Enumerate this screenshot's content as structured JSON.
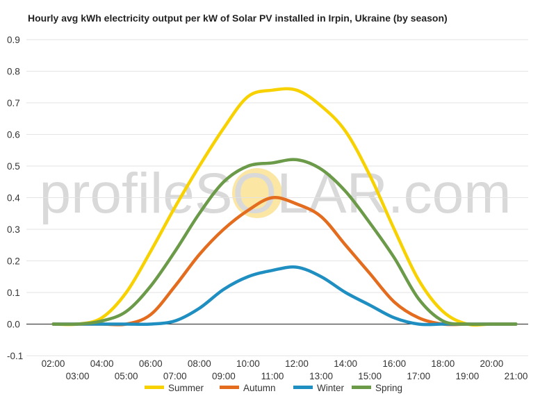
{
  "watermark": {
    "text": "profileSOLAR.com",
    "color": "#d9d9d9",
    "sun_color": "#fbe7a3"
  },
  "chart_data": {
    "type": "line",
    "title": "Hourly avg kWh electricity output per kW of Solar PV installed in Irpin, Ukraine (by season)",
    "xlabel": "",
    "ylabel": "",
    "x": [
      "02:00",
      "03:00",
      "04:00",
      "05:00",
      "06:00",
      "07:00",
      "08:00",
      "09:00",
      "10:00",
      "11:00",
      "12:00",
      "13:00",
      "14:00",
      "15:00",
      "16:00",
      "17:00",
      "18:00",
      "19:00",
      "20:00",
      "21:00"
    ],
    "ylim": [
      -0.1,
      0.9
    ],
    "yticks": [
      -0.1,
      0.0,
      0.1,
      0.2,
      0.3,
      0.4,
      0.5,
      0.6,
      0.7,
      0.8,
      0.9
    ],
    "grid": true,
    "legend_position": "bottom",
    "series": [
      {
        "name": "Summer",
        "color": "#f7d100",
        "values": [
          0.0,
          0.0,
          0.02,
          0.1,
          0.23,
          0.37,
          0.5,
          0.62,
          0.72,
          0.74,
          0.74,
          0.69,
          0.61,
          0.47,
          0.3,
          0.14,
          0.04,
          0.0,
          0.0,
          0.0
        ]
      },
      {
        "name": "Autumn",
        "color": "#e36c1e",
        "values": [
          0.0,
          0.0,
          0.0,
          0.0,
          0.03,
          0.12,
          0.22,
          0.3,
          0.36,
          0.4,
          0.38,
          0.34,
          0.25,
          0.16,
          0.07,
          0.02,
          0.0,
          0.0,
          0.0,
          0.0
        ]
      },
      {
        "name": "Winter",
        "color": "#1f8ec0",
        "values": [
          0.0,
          0.0,
          0.0,
          0.0,
          0.0,
          0.01,
          0.05,
          0.11,
          0.15,
          0.17,
          0.18,
          0.15,
          0.1,
          0.06,
          0.02,
          0.0,
          0.0,
          0.0,
          0.0,
          0.0
        ]
      },
      {
        "name": "Spring",
        "color": "#6b9a48",
        "values": [
          0.0,
          0.0,
          0.01,
          0.04,
          0.12,
          0.23,
          0.35,
          0.45,
          0.5,
          0.51,
          0.52,
          0.49,
          0.42,
          0.32,
          0.21,
          0.08,
          0.01,
          0.0,
          0.0,
          0.0
        ]
      }
    ]
  }
}
